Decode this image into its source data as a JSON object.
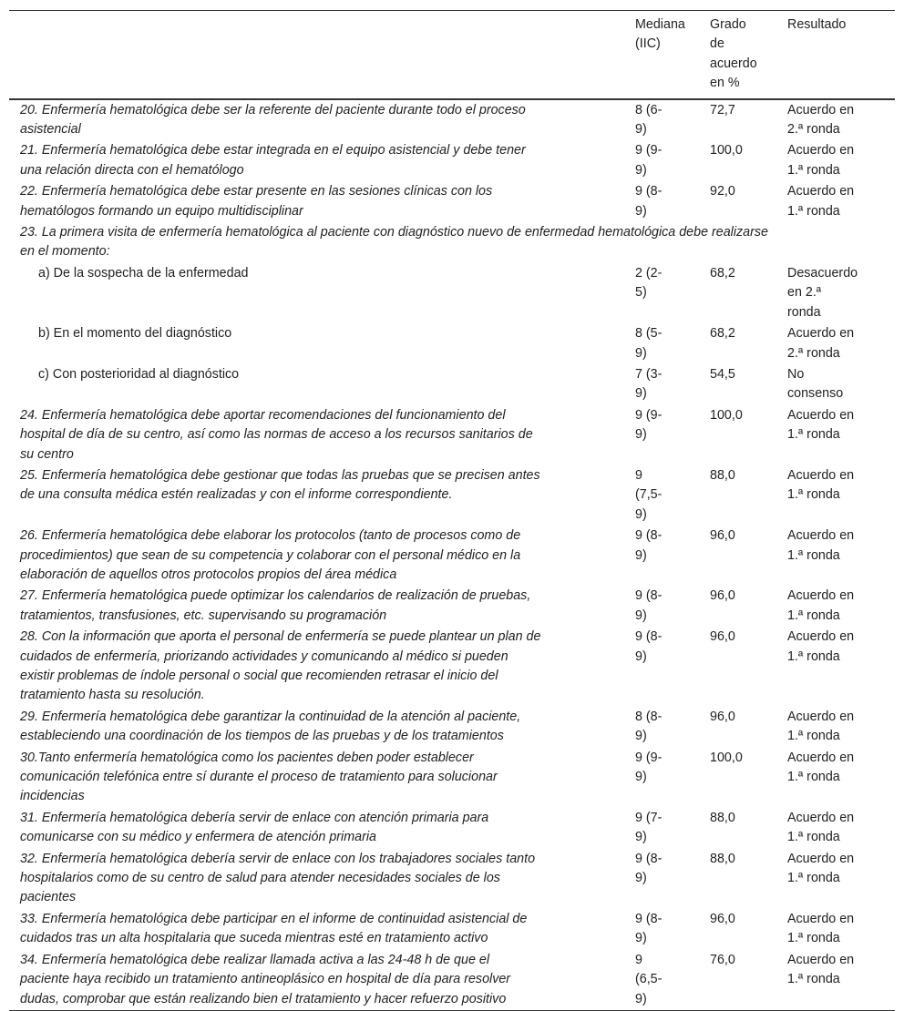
{
  "header": {
    "col_item": "",
    "col_median": "Mediana\n(IIC)",
    "col_agreement": "Grado\nde\nacuerdo\nen %",
    "col_result": "Resultado"
  },
  "rows": [
    {
      "item": "20. Enfermería hematológica debe ser la referente del paciente durante todo el proceso\nasistencial",
      "median": "8 (6-\n9)",
      "agreement": "72,7",
      "result": "Acuerdo en\n2.ª ronda"
    },
    {
      "item": "21. Enfermería hematológica debe estar integrada en el equipo asistencial y debe tener\nuna relación directa con el hematólogo",
      "median": "9 (9-\n9)",
      "agreement": "100,0",
      "result": "Acuerdo en\n1.ª ronda"
    },
    {
      "item": "22. Enfermería hematológica debe estar presente en las sesiones clínicas con los\nhematólogos formando un equipo multidisciplinar",
      "median": "9 (8-\n9)",
      "agreement": "92,0",
      "result": "Acuerdo en\n1.ª ronda"
    },
    {
      "item": "23. La primera visita de enfermería hematológica al paciente con diagnóstico nuevo de enfermedad hematológica debe realizarse\nen el momento:",
      "span": true
    },
    {
      "item": "a) De la sospecha de la enfermedad",
      "sub": true,
      "median": "2 (2-\n5)",
      "agreement": "68,2",
      "result": "Desacuerdo\nen 2.ª\nronda"
    },
    {
      "item": "b) En el momento del diagnóstico",
      "sub": true,
      "median": "8 (5-\n9)",
      "agreement": "68,2",
      "result": "Acuerdo en\n2.ª ronda"
    },
    {
      "item": "c) Con posterioridad al diagnóstico",
      "sub": true,
      "median": "7 (3-\n9)",
      "agreement": "54,5",
      "result": "No\nconsenso"
    },
    {
      "item": "24. Enfermería hematológica debe aportar recomendaciones del funcionamiento del\nhospital de día de su centro, así como las normas de acceso a los recursos sanitarios de\nsu centro",
      "median": "9 (9-\n9)",
      "agreement": "100,0",
      "result": "Acuerdo en\n1.ª ronda"
    },
    {
      "item": "25. Enfermería hematológica debe gestionar que todas las pruebas que se precisen antes\nde una consulta médica estén realizadas y con el informe correspondiente.",
      "median": "9\n(7,5-\n9)",
      "agreement": "88,0",
      "result": "Acuerdo en\n1.ª ronda"
    },
    {
      "item": "26. Enfermería hematológica debe elaborar los protocolos (tanto de procesos como de\nprocedimientos) que sean de su competencia y colaborar con el personal médico en la\nelaboración de aquellos otros protocolos propios del área médica",
      "median": "9 (8-\n9)",
      "agreement": "96,0",
      "result": "Acuerdo en\n1.ª ronda"
    },
    {
      "item": "27. Enfermería hematológica puede optimizar los calendarios de realización de pruebas,\ntratamientos, transfusiones, etc. supervisando su programación",
      "median": "9 (8-\n9)",
      "agreement": "96,0",
      "result": "Acuerdo en\n1.ª ronda"
    },
    {
      "item": "28. Con la información que aporta el personal de enfermería se puede plantear un plan de\ncuidados de enfermería, priorizando actividades y comunicando al médico si pueden\nexistir problemas de índole personal o social que recomienden retrasar el inicio del\ntratamiento hasta su resolución.",
      "median": "9 (8-\n9)",
      "agreement": "96,0",
      "result": "Acuerdo en\n1.ª ronda"
    },
    {
      "item": "29. Enfermería hematológica debe garantizar la continuidad de la atención al paciente,\nestableciendo una coordinación de los tiempos de las pruebas y de los tratamientos",
      "median": "8 (8-\n9)",
      "agreement": "96,0",
      "result": "Acuerdo en\n1.ª ronda"
    },
    {
      "item": "30.Tanto enfermería hematológica como los pacientes deben poder establecer\ncomunicación telefónica entre sí durante el proceso de tratamiento para solucionar\nincidencias",
      "median": "9 (9-\n9)",
      "agreement": "100,0",
      "result": "Acuerdo en\n1.ª ronda"
    },
    {
      "item": "31. Enfermería hematológica debería servir de enlace con atención primaria para\ncomunicarse con su médico y enfermera de atención primaria",
      "median": "9 (7-\n9)",
      "agreement": "88,0",
      "result": "Acuerdo en\n1.ª ronda"
    },
    {
      "item": "32. Enfermería hematológica debería servir de enlace con los trabajadores sociales tanto\nhospitalarios como de su centro de salud para atender necesidades sociales de los\npacientes",
      "median": "9 (8-\n9)",
      "agreement": "88,0",
      "result": "Acuerdo en\n1.ª ronda"
    },
    {
      "item": "33. Enfermería hematológica debe participar en el informe de continuidad asistencial de\ncuidados tras un alta hospitalaria que suceda mientras esté en tratamiento activo",
      "median": "9 (8-\n9)",
      "agreement": "96,0",
      "result": "Acuerdo en\n1.ª ronda"
    },
    {
      "item": "34. Enfermería hematológica debe realizar llamada activa a las 24-48 h de que el\npaciente haya recibido un tratamiento antineoplásico en hospital de día para resolver\ndudas, comprobar que están realizando bien el tratamiento y hacer refuerzo positivo",
      "median": "9\n(6,5-\n9)",
      "agreement": "76,0",
      "result": "Acuerdo en\n1.ª ronda"
    }
  ]
}
